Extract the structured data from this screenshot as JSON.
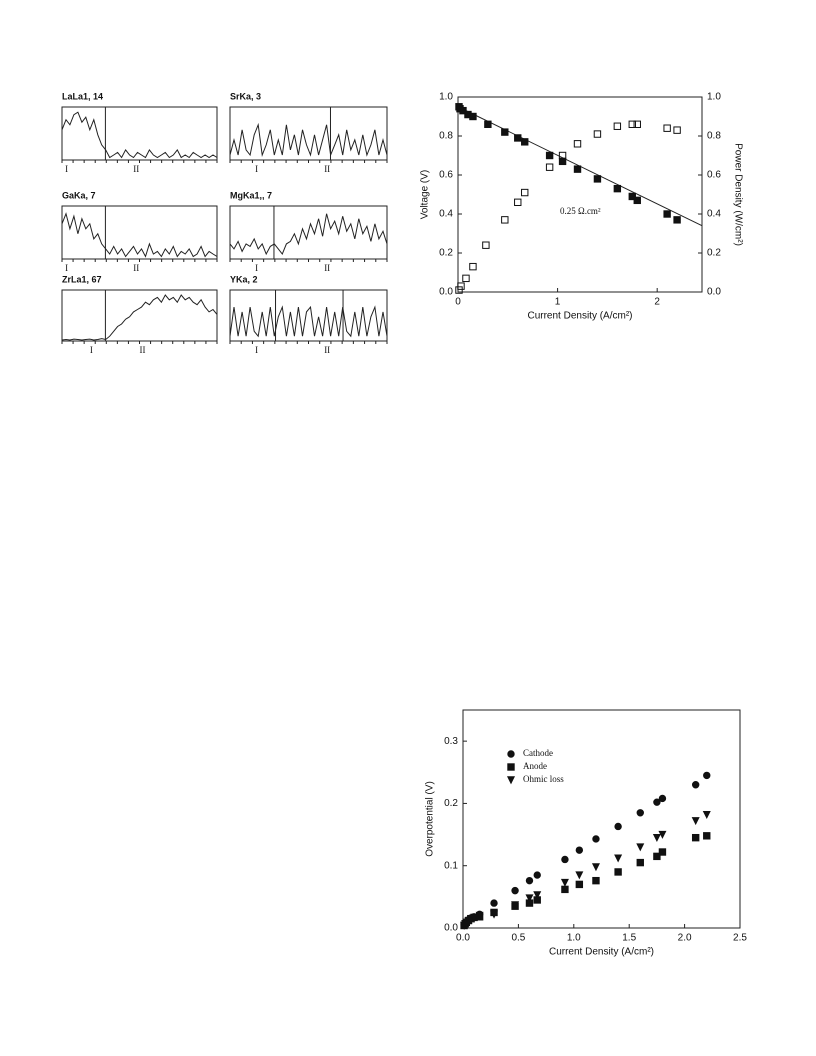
{
  "chart_data": [
    {
      "type": "line",
      "title": "LaLa1, 14",
      "regions": [
        "I",
        "II"
      ],
      "values": [
        0.6,
        0.8,
        0.7,
        0.9,
        0.95,
        0.75,
        0.85,
        0.6,
        0.8,
        0.5,
        0.3,
        0.2,
        0.05,
        0.1,
        0.15,
        0.05,
        0.2,
        0.1,
        0.05,
        0.15,
        0.1,
        0.05,
        0.2,
        0.1,
        0.05,
        0.1,
        0.15,
        0.05,
        0.1,
        0.2,
        0.05,
        0.1,
        0.05,
        0.15,
        0.1,
        0.05,
        0.1,
        0.05,
        0.1,
        0.05
      ]
    },
    {
      "type": "line",
      "title": "SrKa, 3",
      "regions": [
        "I",
        "II"
      ],
      "values": [
        0.1,
        0.4,
        0.1,
        0.6,
        0.2,
        0.1,
        0.5,
        0.7,
        0.1,
        0.3,
        0.6,
        0.1,
        0.4,
        0.1,
        0.7,
        0.2,
        0.5,
        0.1,
        0.6,
        0.3,
        0.1,
        0.5,
        0.1,
        0.4,
        0.7,
        0.1,
        0.3,
        0.5,
        0.1,
        0.6,
        0.2,
        0.4,
        0.1,
        0.5,
        0.1,
        0.3,
        0.6,
        0.1,
        0.4,
        0.1
      ]
    },
    {
      "type": "line",
      "title": "GaKa, 7",
      "regions": [
        "I",
        "II"
      ],
      "values": [
        0.7,
        0.9,
        0.6,
        0.85,
        0.5,
        0.8,
        0.6,
        0.7,
        0.4,
        0.5,
        0.3,
        0.2,
        0.1,
        0.25,
        0.1,
        0.2,
        0.05,
        0.15,
        0.25,
        0.1,
        0.2,
        0.05,
        0.3,
        0.1,
        0.15,
        0.05,
        0.2,
        0.1,
        0.25,
        0.05,
        0.15,
        0.1,
        0.2,
        0.05,
        0.1,
        0.25,
        0.05,
        0.15,
        0.1,
        0.05
      ]
    },
    {
      "type": "line",
      "title": "MgKa1,, 7",
      "regions": [
        "I",
        "II"
      ],
      "values": [
        0.3,
        0.2,
        0.35,
        0.15,
        0.3,
        0.25,
        0.4,
        0.2,
        0.3,
        0.1,
        0.25,
        0.3,
        0.2,
        0.1,
        0.3,
        0.35,
        0.5,
        0.3,
        0.6,
        0.4,
        0.7,
        0.5,
        0.8,
        0.45,
        0.9,
        0.6,
        0.75,
        0.5,
        0.85,
        0.55,
        0.7,
        0.4,
        0.8,
        0.5,
        0.65,
        0.35,
        0.7,
        0.4,
        0.55,
        0.3
      ]
    },
    {
      "type": "line",
      "title": "ZrLa1, 67",
      "regions": [
        "I",
        "II"
      ],
      "values": [
        0.02,
        0.03,
        0.02,
        0.04,
        0.03,
        0.02,
        0.03,
        0.04,
        0.02,
        0.03,
        0.05,
        0.03,
        0.1,
        0.2,
        0.3,
        0.35,
        0.45,
        0.5,
        0.6,
        0.65,
        0.7,
        0.8,
        0.75,
        0.85,
        0.9,
        0.8,
        0.95,
        0.85,
        0.9,
        0.8,
        0.95,
        0.85,
        0.9,
        0.8,
        0.75,
        0.85,
        0.7,
        0.6,
        0.65,
        0.55
      ]
    },
    {
      "type": "line",
      "title": "YKa, 2",
      "regions": [
        "I",
        "II"
      ],
      "values": [
        0.1,
        0.7,
        0.1,
        0.6,
        0.1,
        0.7,
        0.2,
        0.1,
        0.6,
        0.1,
        0.7,
        0.1,
        0.5,
        0.7,
        0.1,
        0.6,
        0.1,
        0.7,
        0.1,
        0.6,
        0.7,
        0.1,
        0.5,
        0.1,
        0.7,
        0.1,
        0.6,
        0.1,
        0.7,
        0.2,
        0.1,
        0.6,
        0.1,
        0.7,
        0.1,
        0.5,
        0.7,
        0.1,
        0.6,
        0.1
      ]
    },
    {
      "type": "scatter",
      "xlabel": "Current Density (A/cm²)",
      "ylabel": "Voltage (V)",
      "y2label": "Power Density (W/cm²)",
      "annotation": "0.25 Ω.cm²",
      "xlim": [
        0,
        2.45
      ],
      "xticks": [
        0,
        1,
        2
      ],
      "ylim": [
        0,
        1.0
      ],
      "yticks": [
        {
          "value": 0,
          "label": "0.0"
        },
        {
          "value": 0.2,
          "label": "0.2"
        },
        {
          "value": 0.4,
          "label": "0.4"
        },
        {
          "value": 0.6,
          "label": "0.6"
        },
        {
          "value": 0.8,
          "label": "0.8"
        },
        {
          "value": 1.0,
          "label": "1.0"
        }
      ],
      "y2lim": [
        0,
        1.0
      ],
      "y2ticks": [
        {
          "value": 0,
          "label": "0.0"
        },
        {
          "value": 0.2,
          "label": "0.2"
        },
        {
          "value": 0.4,
          "label": "0.4"
        },
        {
          "value": 0.6,
          "label": "0.6"
        },
        {
          "value": 0.8,
          "label": "0.8"
        },
        {
          "value": 1.0,
          "label": "1.0"
        }
      ],
      "fit": {
        "x": [
          0,
          2.45
        ],
        "values": [
          0.95,
          0.34
        ]
      },
      "series": [
        {
          "marker": "square",
          "filled": true,
          "color": "#111",
          "x": [
            0.01,
            0.02,
            0.05,
            0.1,
            0.15,
            0.3,
            0.47,
            0.6,
            0.67,
            0.92,
            1.05,
            1.2,
            1.4,
            1.6,
            1.75,
            1.8,
            2.1,
            2.2
          ],
          "values": [
            0.95,
            0.94,
            0.93,
            0.91,
            0.9,
            0.86,
            0.82,
            0.79,
            0.77,
            0.7,
            0.67,
            0.63,
            0.58,
            0.53,
            0.49,
            0.47,
            0.4,
            0.37
          ]
        },
        {
          "marker": "square",
          "filled": false,
          "color": "#111",
          "axis": "y2",
          "x": [
            0.01,
            0.03,
            0.08,
            0.15,
            0.28,
            0.47,
            0.6,
            0.67,
            0.92,
            1.05,
            1.2,
            1.4,
            1.6,
            1.75,
            1.8,
            2.1,
            2.2
          ],
          "values": [
            0.01,
            0.03,
            0.07,
            0.13,
            0.24,
            0.37,
            0.46,
            0.51,
            0.64,
            0.7,
            0.76,
            0.81,
            0.85,
            0.86,
            0.86,
            0.84,
            0.83
          ]
        }
      ]
    },
    {
      "type": "scatter",
      "xlabel": "Current Density (A/cm²)",
      "ylabel": "Overpotential (V)",
      "xlim": [
        0,
        2.5
      ],
      "xticks": [
        {
          "value": 0,
          "label": "0.0"
        },
        {
          "value": 0.5,
          "label": "0.5"
        },
        {
          "value": 1.0,
          "label": "1.0"
        },
        {
          "value": 1.5,
          "label": "1.5"
        },
        {
          "value": 2.0,
          "label": "2.0"
        },
        {
          "value": 2.5,
          "label": "2.5"
        }
      ],
      "ylim": [
        0,
        0.35
      ],
      "yticks": [
        {
          "value": 0,
          "label": "0.0"
        },
        {
          "value": 0.1,
          "label": "0.1"
        },
        {
          "value": 0.2,
          "label": "0.2"
        },
        {
          "value": 0.3,
          "label": "0.3"
        }
      ],
      "legend": "upper left",
      "series": [
        {
          "name": "Cathode",
          "marker": "circle",
          "filled": true,
          "color": "#111",
          "x": [
            0.01,
            0.02,
            0.03,
            0.05,
            0.07,
            0.1,
            0.15,
            0.28,
            0.47,
            0.6,
            0.67,
            0.92,
            1.05,
            1.2,
            1.4,
            1.6,
            1.75,
            1.8,
            2.1,
            2.2
          ],
          "values": [
            0.005,
            0.008,
            0.01,
            0.013,
            0.016,
            0.018,
            0.022,
            0.04,
            0.06,
            0.076,
            0.085,
            0.11,
            0.125,
            0.143,
            0.163,
            0.185,
            0.202,
            0.208,
            0.23,
            0.245
          ]
        },
        {
          "name": "Anode",
          "marker": "square",
          "filled": true,
          "color": "#111",
          "x": [
            0.01,
            0.02,
            0.03,
            0.05,
            0.07,
            0.1,
            0.15,
            0.28,
            0.47,
            0.6,
            0.67,
            0.92,
            1.05,
            1.2,
            1.4,
            1.6,
            1.75,
            1.8,
            2.1,
            2.2
          ],
          "values": [
            0.004,
            0.007,
            0.009,
            0.012,
            0.015,
            0.017,
            0.018,
            0.025,
            0.035,
            0.04,
            0.045,
            0.062,
            0.07,
            0.076,
            0.09,
            0.105,
            0.115,
            0.122,
            0.145,
            0.148
          ]
        },
        {
          "name": "Ohmic loss",
          "marker": "triangle",
          "filled": true,
          "color": "#111",
          "x": [
            0.01,
            0.02,
            0.03,
            0.05,
            0.07,
            0.1,
            0.15,
            0.28,
            0.47,
            0.6,
            0.67,
            0.92,
            1.05,
            1.2,
            1.4,
            1.6,
            1.75,
            1.8,
            2.1,
            2.2
          ],
          "values": [
            0.004,
            0.007,
            0.009,
            0.011,
            0.013,
            0.015,
            0.02,
            0.022,
            0.037,
            0.048,
            0.053,
            0.073,
            0.085,
            0.098,
            0.112,
            0.13,
            0.145,
            0.15,
            0.172,
            0.182
          ]
        }
      ]
    }
  ]
}
